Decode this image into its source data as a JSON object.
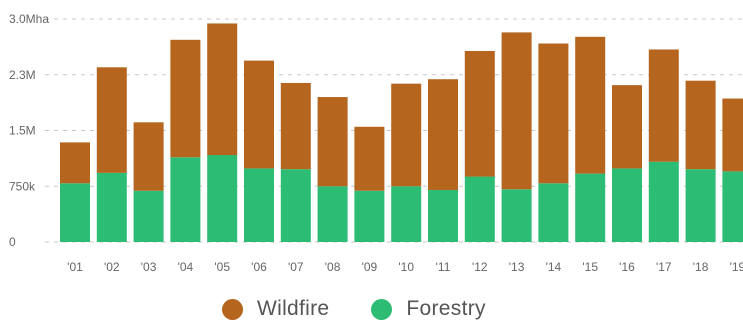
{
  "chart_data": {
    "type": "bar",
    "stacked": true,
    "categories": [
      "'01",
      "'02",
      "'03",
      "'04",
      "'05",
      "'06",
      "'07",
      "'08",
      "'09",
      "'10",
      "'11",
      "'12",
      "'13",
      "'14",
      "'15",
      "'16",
      "'17",
      "'18",
      "'19"
    ],
    "series": [
      {
        "name": "Forestry",
        "color": "#2dbc73",
        "values": [
          790000,
          930000,
          690000,
          1140000,
          1170000,
          990000,
          980000,
          750000,
          690000,
          750000,
          700000,
          880000,
          710000,
          790000,
          920000,
          990000,
          1080000,
          980000,
          950000
        ]
      },
      {
        "name": "Wildfire",
        "color": "#b5651d",
        "values": [
          550000,
          1420000,
          920000,
          1580000,
          1770000,
          1450000,
          1160000,
          1200000,
          860000,
          1380000,
          1490000,
          1690000,
          2110000,
          1880000,
          1840000,
          1120000,
          1510000,
          1190000,
          980000
        ]
      }
    ],
    "yticks": [
      {
        "value": 0,
        "label": "0"
      },
      {
        "value": 750000,
        "label": "750k"
      },
      {
        "value": 1500000,
        "label": "1.5M"
      },
      {
        "value": 2250000,
        "label": "2.3M"
      },
      {
        "value": 3000000,
        "label": "3.0Mha"
      }
    ],
    "ylim": [
      0,
      3000000
    ],
    "grid": true,
    "legend_position": "bottom"
  },
  "legend": {
    "wildfire_label": "Wildfire",
    "forestry_label": "Forestry"
  }
}
